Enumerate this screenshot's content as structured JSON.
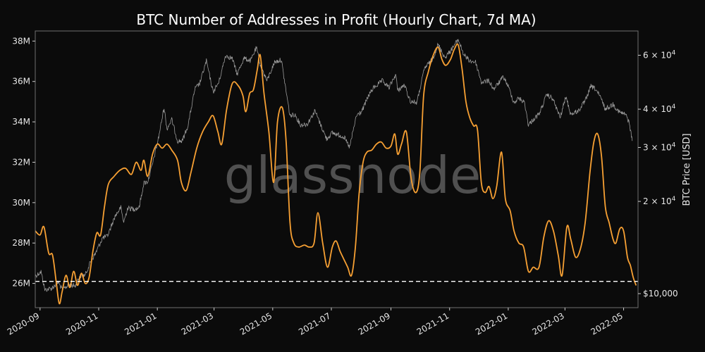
{
  "chart_data": {
    "type": "line",
    "title": "BTC Number of Addresses in Profit (Hourly Chart, 7d MA)",
    "watermark": "glassnode",
    "y_left": {
      "label": "",
      "range": [
        24.8,
        38.5
      ],
      "ticks": [
        {
          "value": 26,
          "label": "26M"
        },
        {
          "value": 28,
          "label": "28M"
        },
        {
          "value": 30,
          "label": "30M"
        },
        {
          "value": 32,
          "label": "32M"
        },
        {
          "value": 34,
          "label": "34M"
        },
        {
          "value": 36,
          "label": "36M"
        },
        {
          "value": 38,
          "label": "38M"
        }
      ]
    },
    "y_right": {
      "label": "BTC Price [USD]",
      "scale": "log",
      "range": [
        9000,
        72000
      ],
      "ticks": [
        {
          "value": 10000,
          "label": "$10,000",
          "mant": "",
          "exp": ""
        },
        {
          "value": 20000,
          "label": "",
          "mant": "2 × 10",
          "exp": "4"
        },
        {
          "value": 30000,
          "label": "",
          "mant": "3 × 10",
          "exp": "4"
        },
        {
          "value": 40000,
          "label": "",
          "mant": "4 × 10",
          "exp": "4"
        },
        {
          "value": 60000,
          "label": "",
          "mant": "6 × 10",
          "exp": "4"
        }
      ]
    },
    "x_axis": {
      "range": [
        "2020-08-27",
        "2022-05-16"
      ],
      "ticks": [
        {
          "date": "2020-09-01",
          "label": "2020-09"
        },
        {
          "date": "2020-11-01",
          "label": "2020-11"
        },
        {
          "date": "2021-01-01",
          "label": "2021-01"
        },
        {
          "date": "2021-03-01",
          "label": "2021-03"
        },
        {
          "date": "2021-05-01",
          "label": "2021-05"
        },
        {
          "date": "2021-07-01",
          "label": "2021-07"
        },
        {
          "date": "2021-09-01",
          "label": "2021-09"
        },
        {
          "date": "2021-11-01",
          "label": "2021-11"
        },
        {
          "date": "2022-01-01",
          "label": "2022-01"
        },
        {
          "date": "2022-03-01",
          "label": "2022-03"
        },
        {
          "date": "2022-05-01",
          "label": "2022-05"
        }
      ]
    },
    "reference_line": {
      "value": 26.1,
      "style": "dashed",
      "color": "#ffffff"
    },
    "colors": {
      "background": "#0b0b0b",
      "addresses": "#f7a033",
      "price": "#9a9a9a",
      "frame": "#6f6f6f"
    },
    "grid": false,
    "series": [
      {
        "axis": "left",
        "units": "M",
        "points": [
          [
            "2020-08-27",
            28.6
          ],
          [
            "2020-09-01",
            28.4
          ],
          [
            "2020-09-05",
            28.8
          ],
          [
            "2020-09-10",
            27.5
          ],
          [
            "2020-09-14",
            27.4
          ],
          [
            "2020-09-18",
            26.0
          ],
          [
            "2020-09-21",
            25.0
          ],
          [
            "2020-09-24",
            25.6
          ],
          [
            "2020-09-28",
            26.4
          ],
          [
            "2020-10-02",
            25.8
          ],
          [
            "2020-10-06",
            26.6
          ],
          [
            "2020-10-10",
            25.9
          ],
          [
            "2020-10-14",
            26.5
          ],
          [
            "2020-10-18",
            26.0
          ],
          [
            "2020-10-22",
            26.3
          ],
          [
            "2020-10-26",
            27.6
          ],
          [
            "2020-10-30",
            28.5
          ],
          [
            "2020-11-03",
            28.4
          ],
          [
            "2020-11-07",
            29.8
          ],
          [
            "2020-11-11",
            30.9
          ],
          [
            "2020-11-17",
            31.3
          ],
          [
            "2020-11-23",
            31.6
          ],
          [
            "2020-11-29",
            31.7
          ],
          [
            "2020-12-05",
            31.4
          ],
          [
            "2020-12-10",
            32.0
          ],
          [
            "2020-12-15",
            31.6
          ],
          [
            "2020-12-18",
            32.1
          ],
          [
            "2020-12-22",
            31.3
          ],
          [
            "2020-12-27",
            32.4
          ],
          [
            "2021-01-01",
            32.9
          ],
          [
            "2021-01-06",
            32.7
          ],
          [
            "2021-01-11",
            32.9
          ],
          [
            "2021-01-16",
            32.6
          ],
          [
            "2021-01-22",
            32.1
          ],
          [
            "2021-01-26",
            31.0
          ],
          [
            "2021-01-31",
            30.6
          ],
          [
            "2021-02-05",
            31.5
          ],
          [
            "2021-02-11",
            32.7
          ],
          [
            "2021-02-17",
            33.5
          ],
          [
            "2021-02-23",
            34.0
          ],
          [
            "2021-02-28",
            34.3
          ],
          [
            "2021-03-05",
            33.5
          ],
          [
            "2021-03-09",
            32.9
          ],
          [
            "2021-03-14",
            34.6
          ],
          [
            "2021-03-20",
            35.9
          ],
          [
            "2021-03-26",
            35.8
          ],
          [
            "2021-03-31",
            35.3
          ],
          [
            "2021-04-03",
            34.5
          ],
          [
            "2021-04-07",
            35.4
          ],
          [
            "2021-04-11",
            35.6
          ],
          [
            "2021-04-15",
            36.6
          ],
          [
            "2021-04-18",
            37.3
          ],
          [
            "2021-04-22",
            35.4
          ],
          [
            "2021-04-27",
            33.5
          ],
          [
            "2021-05-02",
            31.0
          ],
          [
            "2021-05-06",
            34.0
          ],
          [
            "2021-05-11",
            34.7
          ],
          [
            "2021-05-15",
            33.0
          ],
          [
            "2021-05-19",
            29.0
          ],
          [
            "2021-05-23",
            28.0
          ],
          [
            "2021-05-28",
            27.8
          ],
          [
            "2021-06-03",
            27.9
          ],
          [
            "2021-06-08",
            27.8
          ],
          [
            "2021-06-13",
            28.0
          ],
          [
            "2021-06-17",
            29.5
          ],
          [
            "2021-06-22",
            28.0
          ],
          [
            "2021-06-27",
            26.8
          ],
          [
            "2021-07-02",
            27.8
          ],
          [
            "2021-07-06",
            28.1
          ],
          [
            "2021-07-10",
            27.6
          ],
          [
            "2021-07-14",
            27.2
          ],
          [
            "2021-07-18",
            26.8
          ],
          [
            "2021-07-22",
            26.4
          ],
          [
            "2021-07-26",
            27.8
          ],
          [
            "2021-07-30",
            30.5
          ],
          [
            "2021-08-03",
            32.0
          ],
          [
            "2021-08-07",
            32.5
          ],
          [
            "2021-08-12",
            32.6
          ],
          [
            "2021-08-17",
            32.9
          ],
          [
            "2021-08-22",
            33.0
          ],
          [
            "2021-08-27",
            32.7
          ],
          [
            "2021-09-01",
            32.8
          ],
          [
            "2021-09-05",
            33.4
          ],
          [
            "2021-09-08",
            32.4
          ],
          [
            "2021-09-12",
            32.9
          ],
          [
            "2021-09-17",
            33.5
          ],
          [
            "2021-09-22",
            31.2
          ],
          [
            "2021-09-27",
            30.5
          ],
          [
            "2021-10-01",
            31.5
          ],
          [
            "2021-10-05",
            35.3
          ],
          [
            "2021-10-10",
            36.5
          ],
          [
            "2021-10-15",
            37.3
          ],
          [
            "2021-10-20",
            37.7
          ],
          [
            "2021-10-24",
            37.1
          ],
          [
            "2021-10-28",
            36.8
          ],
          [
            "2021-11-02",
            37.1
          ],
          [
            "2021-11-06",
            37.6
          ],
          [
            "2021-11-10",
            37.8
          ],
          [
            "2021-11-14",
            36.6
          ],
          [
            "2021-11-18",
            35.0
          ],
          [
            "2021-11-22",
            34.2
          ],
          [
            "2021-11-26",
            33.8
          ],
          [
            "2021-11-30",
            33.6
          ],
          [
            "2021-12-04",
            31.0
          ],
          [
            "2021-12-08",
            30.5
          ],
          [
            "2021-12-12",
            30.8
          ],
          [
            "2021-12-16",
            30.2
          ],
          [
            "2021-12-20",
            30.8
          ],
          [
            "2021-12-25",
            32.5
          ],
          [
            "2021-12-29",
            30.2
          ],
          [
            "2022-01-03",
            29.6
          ],
          [
            "2022-01-07",
            28.6
          ],
          [
            "2022-01-12",
            28.0
          ],
          [
            "2022-01-17",
            27.8
          ],
          [
            "2022-01-22",
            26.6
          ],
          [
            "2022-01-27",
            26.8
          ],
          [
            "2022-02-02",
            26.8
          ],
          [
            "2022-02-07",
            28.3
          ],
          [
            "2022-02-12",
            29.1
          ],
          [
            "2022-02-17",
            28.6
          ],
          [
            "2022-02-22",
            27.4
          ],
          [
            "2022-02-26",
            26.4
          ],
          [
            "2022-03-03",
            28.8
          ],
          [
            "2022-03-07",
            28.2
          ],
          [
            "2022-03-12",
            27.3
          ],
          [
            "2022-03-17",
            27.7
          ],
          [
            "2022-03-22",
            29.0
          ],
          [
            "2022-03-27",
            31.5
          ],
          [
            "2022-03-31",
            33.0
          ],
          [
            "2022-04-04",
            33.4
          ],
          [
            "2022-04-08",
            32.3
          ],
          [
            "2022-04-12",
            29.8
          ],
          [
            "2022-04-16",
            29.0
          ],
          [
            "2022-04-20",
            28.2
          ],
          [
            "2022-04-23",
            28.0
          ],
          [
            "2022-04-27",
            28.7
          ],
          [
            "2022-05-01",
            28.6
          ],
          [
            "2022-05-05",
            27.3
          ],
          [
            "2022-05-08",
            26.9
          ],
          [
            "2022-05-11",
            26.3
          ],
          [
            "2022-05-14",
            25.9
          ]
        ]
      },
      {
        "axis": "right",
        "units": "USD",
        "points": [
          [
            "2020-08-27",
            11400
          ],
          [
            "2020-09-02",
            11800
          ],
          [
            "2020-09-06",
            10300
          ],
          [
            "2020-09-13",
            10400
          ],
          [
            "2020-09-20",
            10900
          ],
          [
            "2020-09-24",
            10300
          ],
          [
            "2020-10-01",
            10700
          ],
          [
            "2020-10-08",
            10600
          ],
          [
            "2020-10-12",
            11400
          ],
          [
            "2020-10-18",
            11500
          ],
          [
            "2020-10-24",
            12800
          ],
          [
            "2020-10-28",
            13400
          ],
          [
            "2020-11-05",
            15200
          ],
          [
            "2020-11-10",
            15400
          ],
          [
            "2020-11-18",
            17900
          ],
          [
            "2020-11-24",
            19100
          ],
          [
            "2020-11-27",
            17100
          ],
          [
            "2020-12-01",
            19000
          ],
          [
            "2020-12-08",
            18900
          ],
          [
            "2020-12-13",
            19100
          ],
          [
            "2020-12-18",
            23000
          ],
          [
            "2020-12-22",
            23200
          ],
          [
            "2020-12-27",
            26500
          ],
          [
            "2021-01-02",
            32000
          ],
          [
            "2021-01-08",
            40500
          ],
          [
            "2021-01-11",
            34500
          ],
          [
            "2021-01-16",
            37000
          ],
          [
            "2021-01-22",
            31500
          ],
          [
            "2021-01-27",
            31500
          ],
          [
            "2021-02-02",
            35500
          ],
          [
            "2021-02-09",
            46500
          ],
          [
            "2021-02-14",
            48500
          ],
          [
            "2021-02-21",
            57500
          ],
          [
            "2021-02-28",
            45500
          ],
          [
            "2021-03-06",
            49000
          ],
          [
            "2021-03-13",
            60000
          ],
          [
            "2021-03-20",
            58500
          ],
          [
            "2021-03-25",
            52000
          ],
          [
            "2021-04-01",
            58700
          ],
          [
            "2021-04-08",
            57500
          ],
          [
            "2021-04-14",
            63500
          ],
          [
            "2021-04-18",
            56000
          ],
          [
            "2021-04-25",
            49500
          ],
          [
            "2021-05-03",
            57000
          ],
          [
            "2021-05-10",
            58000
          ],
          [
            "2021-05-13",
            50000
          ],
          [
            "2021-05-19",
            38000
          ],
          [
            "2021-05-24",
            38500
          ],
          [
            "2021-05-30",
            35500
          ],
          [
            "2021-06-06",
            35800
          ],
          [
            "2021-06-14",
            39500
          ],
          [
            "2021-06-20",
            35500
          ],
          [
            "2021-06-26",
            32000
          ],
          [
            "2021-07-02",
            33500
          ],
          [
            "2021-07-08",
            33000
          ],
          [
            "2021-07-14",
            32500
          ],
          [
            "2021-07-20",
            30000
          ],
          [
            "2021-07-27",
            38000
          ],
          [
            "2021-08-02",
            39500
          ],
          [
            "2021-08-09",
            44500
          ],
          [
            "2021-08-14",
            47000
          ],
          [
            "2021-08-23",
            49500
          ],
          [
            "2021-08-30",
            47000
          ],
          [
            "2021-09-06",
            52000
          ],
          [
            "2021-09-08",
            46000
          ],
          [
            "2021-09-15",
            48000
          ],
          [
            "2021-09-21",
            42500
          ],
          [
            "2021-09-28",
            42000
          ],
          [
            "2021-10-06",
            54500
          ],
          [
            "2021-10-14",
            58000
          ],
          [
            "2021-10-20",
            65000
          ],
          [
            "2021-10-27",
            59000
          ],
          [
            "2021-11-01",
            61500
          ],
          [
            "2021-11-10",
            67500
          ],
          [
            "2021-11-16",
            60000
          ],
          [
            "2021-11-22",
            57500
          ],
          [
            "2021-11-28",
            57000
          ],
          [
            "2021-12-04",
            49000
          ],
          [
            "2021-12-12",
            49500
          ],
          [
            "2021-12-17",
            46500
          ],
          [
            "2021-12-27",
            51000
          ],
          [
            "2022-01-01",
            47500
          ],
          [
            "2022-01-07",
            42000
          ],
          [
            "2022-01-12",
            43500
          ],
          [
            "2022-01-18",
            42000
          ],
          [
            "2022-01-22",
            35500
          ],
          [
            "2022-01-27",
            37000
          ],
          [
            "2022-02-02",
            38500
          ],
          [
            "2022-02-10",
            44500
          ],
          [
            "2022-02-16",
            43500
          ],
          [
            "2022-02-24",
            37500
          ],
          [
            "2022-03-02",
            44000
          ],
          [
            "2022-03-07",
            38500
          ],
          [
            "2022-03-15",
            39500
          ],
          [
            "2022-03-22",
            42500
          ],
          [
            "2022-03-28",
            47500
          ],
          [
            "2022-04-02",
            46500
          ],
          [
            "2022-04-08",
            43000
          ],
          [
            "2022-04-12",
            40000
          ],
          [
            "2022-04-20",
            41500
          ],
          [
            "2022-04-27",
            39000
          ],
          [
            "2022-05-03",
            38500
          ],
          [
            "2022-05-07",
            36000
          ],
          [
            "2022-05-10",
            31500
          ]
        ]
      }
    ]
  }
}
